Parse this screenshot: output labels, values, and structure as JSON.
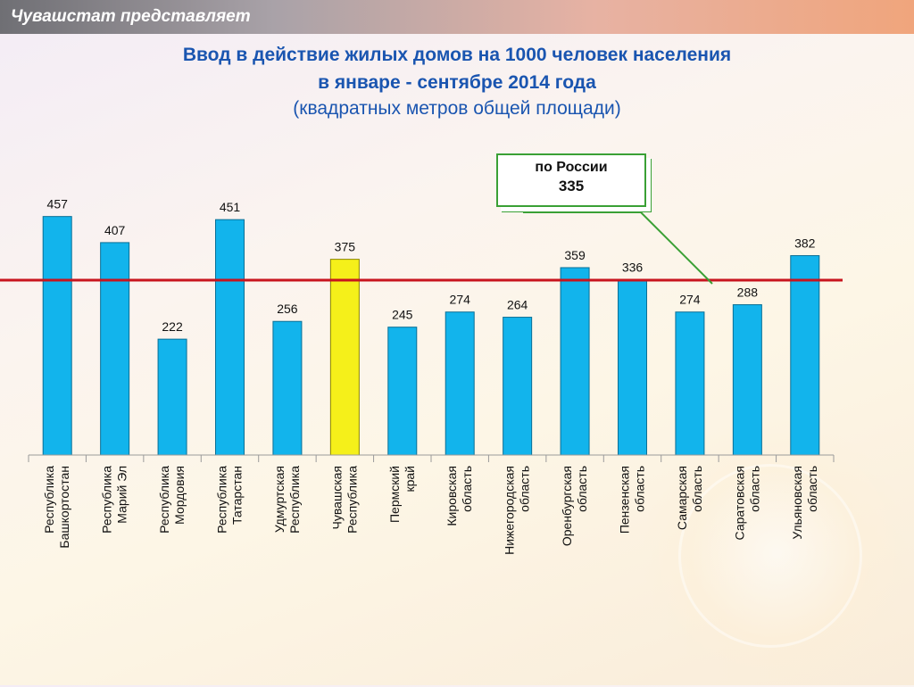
{
  "header": {
    "text": "Чувашстат представляет"
  },
  "title_line1": "Ввод в действие жилых домов на 1000 человек населения",
  "title_line2": "в январе - сентябре 2014 года",
  "subtitle": "(квадратных метров общей площади)",
  "average": {
    "label": "по России",
    "value": "335"
  },
  "colors": {
    "bar": "#12b4ec",
    "bar_highlight": "#f5f01a",
    "average_line": "#c8141e",
    "callout": "#3aa035",
    "title": "#1a55b0"
  },
  "chart_data": {
    "type": "bar",
    "title": "Ввод в действие жилых домов на 1000 человек населения в январе - сентябре 2014 года",
    "subtitle": "(квадратных метров общей площади)",
    "categories": [
      [
        "Республика",
        "Башкортостан"
      ],
      [
        "Республика",
        "Марий Эл"
      ],
      [
        "Республика",
        "Мордовия"
      ],
      [
        "Республика",
        "Татарстан"
      ],
      [
        "Удмуртская",
        "Республика"
      ],
      [
        "Чувашская",
        "Республика"
      ],
      [
        "Пермский",
        "край"
      ],
      [
        "Кировская",
        "область"
      ],
      [
        "Нижегородская",
        "область"
      ],
      [
        "Оренбургская",
        "область"
      ],
      [
        "Пензенская",
        "область"
      ],
      [
        "Самарская",
        "область"
      ],
      [
        "Саратовская",
        "область"
      ],
      [
        "Ульяновская",
        "область"
      ]
    ],
    "values": [
      457,
      407,
      222,
      451,
      256,
      375,
      245,
      274,
      264,
      359,
      336,
      274,
      288,
      382
    ],
    "highlight_index": 5,
    "reference_line": {
      "label": "по России",
      "value": 335
    },
    "ylim": [
      0,
      500
    ],
    "grid": false,
    "legend": "none"
  }
}
